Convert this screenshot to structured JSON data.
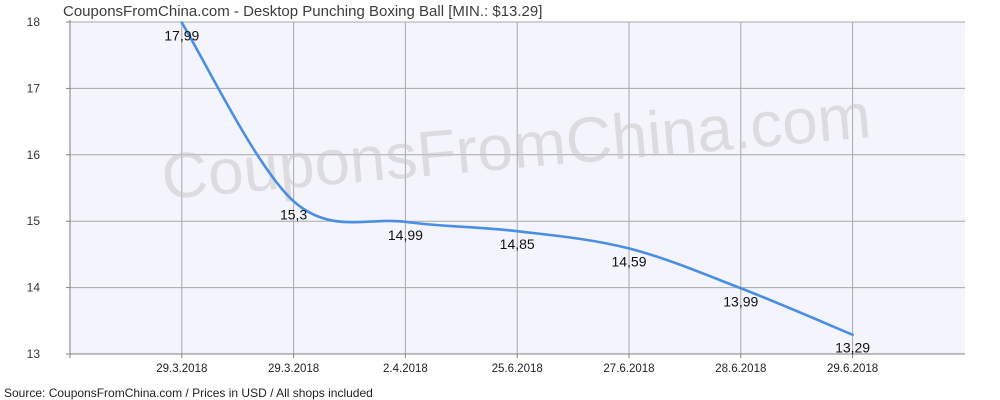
{
  "header": {
    "title": "CouponsFromChina.com - Desktop Punching Boxing Ball [MIN.: $13.29]"
  },
  "footer": {
    "source": "Source: CouponsFromChina.com / Prices in USD / All shops included"
  },
  "watermark": "CouponsFromChina.com",
  "colors": {
    "line": "#4a8fe4",
    "plot_background": "#f4f4fd",
    "grid": "#a8a8a8",
    "axis": "#808080"
  },
  "chart_data": {
    "type": "line",
    "title": "CouponsFromChina.com - Desktop Punching Boxing Ball [MIN.: $13.29]",
    "xlabel": "",
    "ylabel": "",
    "categories": [
      "29.3.2018",
      "29.3.2018",
      "2.4.2018",
      "25.6.2018",
      "27.6.2018",
      "28.6.2018",
      "29.6.2018"
    ],
    "series": [
      {
        "values": [
          17.99,
          15.3,
          14.99,
          14.85,
          14.59,
          13.99,
          13.29
        ],
        "labels": [
          "17,99",
          "15,3",
          "14,99",
          "14,85",
          "14,59",
          "13,99",
          "13,29"
        ]
      }
    ],
    "ylim": [
      13,
      18
    ],
    "yticks": [
      13,
      14,
      15,
      16,
      17,
      18
    ],
    "grid": true,
    "legend": "none"
  }
}
